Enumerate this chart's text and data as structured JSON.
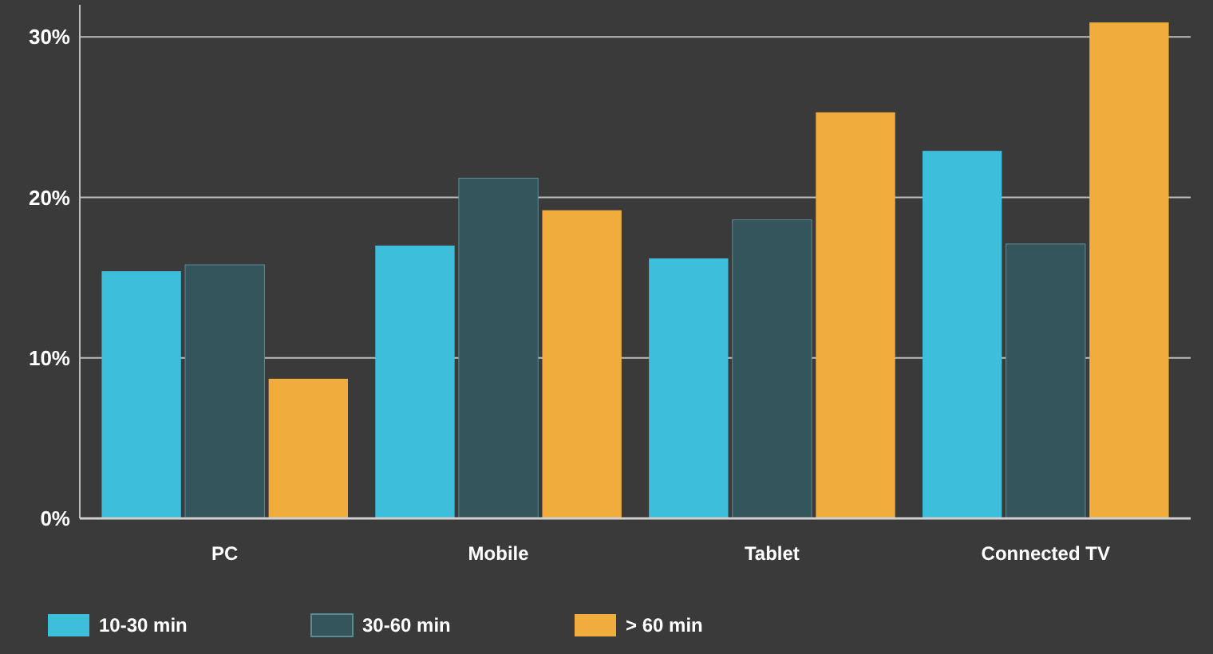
{
  "chart_data": {
    "type": "bar",
    "categories": [
      "PC",
      "Mobile",
      "Tablet",
      "Connected TV"
    ],
    "series": [
      {
        "name": "10-30 min",
        "color": "#3dbfdc",
        "values": [
          15.4,
          17.0,
          16.2,
          22.9
        ]
      },
      {
        "name": "30-60 min",
        "color": "#35555c",
        "values": [
          15.8,
          21.2,
          18.6,
          17.1
        ]
      },
      {
        "name": "> 60 min",
        "color": "#f0ad3c",
        "values": [
          8.7,
          19.2,
          25.3,
          30.9
        ]
      }
    ],
    "ylim": [
      0,
      32
    ],
    "yticks": [
      {
        "value": 0,
        "label": "0%"
      },
      {
        "value": 10,
        "label": "10%"
      },
      {
        "value": 20,
        "label": "20%"
      },
      {
        "value": 30,
        "label": "30%"
      }
    ],
    "grid": "y",
    "legend": "bottom"
  }
}
